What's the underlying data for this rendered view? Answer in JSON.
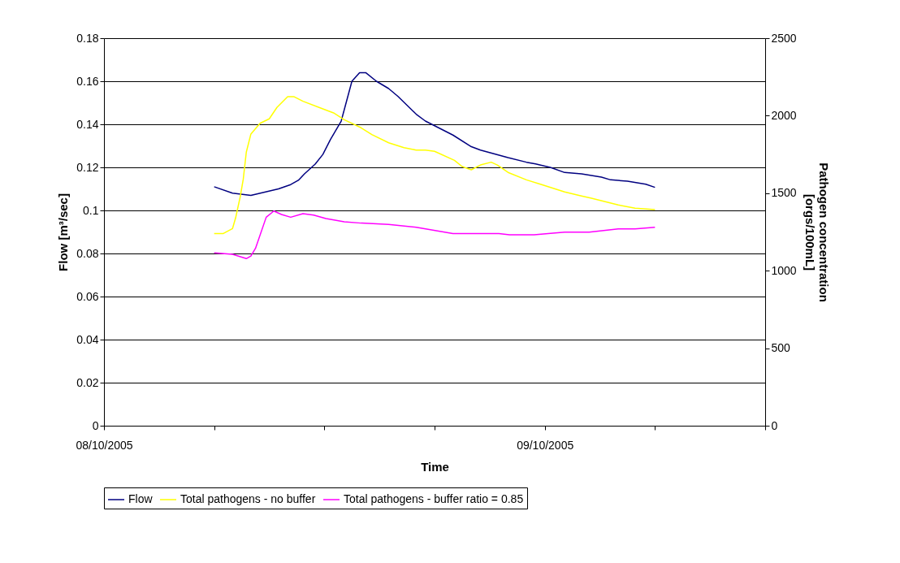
{
  "chart_data": {
    "type": "line",
    "xlabel": "Time",
    "ylabel": "Flow [m³/sec]",
    "y2label": "Pathogen concentration [orgs/100mL]",
    "xlim": [
      "2005-10-08T00:00",
      "2005-10-09T12:00"
    ],
    "xticks": [
      {
        "value": "2005-10-08T00:00",
        "label": "08/10/2005"
      },
      {
        "value": "2005-10-08T06:00",
        "label": null
      },
      {
        "value": "2005-10-08T12:00",
        "label": null
      },
      {
        "value": "2005-10-08T18:00",
        "label": null
      },
      {
        "value": "2005-10-09T00:00",
        "label": "09/10/2005"
      },
      {
        "value": "2005-10-09T06:00",
        "label": null
      },
      {
        "value": "2005-10-09T12:00",
        "label": null
      }
    ],
    "ylim": [
      0,
      0.18
    ],
    "yticks": [
      0,
      0.02,
      0.04,
      0.06,
      0.08,
      0.1,
      0.12,
      0.14,
      0.16,
      0.18
    ],
    "y2lim": [
      0,
      2500
    ],
    "y2ticks": [
      0,
      500,
      1000,
      1500,
      2000,
      2500
    ],
    "grid": "y",
    "legend": "bottom",
    "marker": "none",
    "line_style": "solid",
    "series": [
      {
        "name": "Flow",
        "color": "#000080",
        "x": [
          "2005-10-08T06:00",
          "2005-10-08T07:00",
          "2005-10-08T08:00",
          "2005-10-08T09:30",
          "2005-10-08T10:10",
          "2005-10-08T10:35",
          "2005-10-08T10:55",
          "2005-10-08T11:30",
          "2005-10-08T11:55",
          "2005-10-08T12:20",
          "2005-10-08T12:55",
          "2005-10-08T13:30",
          "2005-10-08T13:55",
          "2005-10-08T14:15",
          "2005-10-08T14:50",
          "2005-10-08T15:30",
          "2005-10-08T16:00",
          "2005-10-08T17:00",
          "2005-10-08T17:30",
          "2005-10-08T19:00",
          "2005-10-08T20:00",
          "2005-10-08T20:30",
          "2005-10-08T22:00",
          "2005-10-08T23:00",
          "2005-10-08T23:30",
          "2005-10-09T00:20",
          "2005-10-09T01:05",
          "2005-10-09T02:00",
          "2005-10-09T03:05",
          "2005-10-09T03:35",
          "2005-10-09T04:30",
          "2005-10-09T05:30",
          "2005-10-09T06:00"
        ],
        "values": [
          0.111,
          0.108,
          0.107,
          0.11,
          0.112,
          0.114,
          0.117,
          0.1215,
          0.126,
          0.133,
          0.1415,
          0.16,
          0.164,
          0.164,
          0.16,
          0.1566,
          0.153,
          0.1447,
          0.1415,
          0.135,
          0.1296,
          0.128,
          0.1245,
          0.1224,
          0.1216,
          0.1199,
          0.1176,
          0.117,
          0.1155,
          0.1142,
          0.1136,
          0.1122,
          0.1107
        ]
      },
      {
        "name": "Total pathogens - no buffer",
        "color": "#ffff00",
        "axis": "y2",
        "x": [
          "2005-10-08T06:00",
          "2005-10-08T06:30",
          "2005-10-08T07:00",
          "2005-10-08T07:10",
          "2005-10-08T07:25",
          "2005-10-08T07:35",
          "2005-10-08T07:45",
          "2005-10-08T08:00",
          "2005-10-08T08:30",
          "2005-10-08T09:00",
          "2005-10-08T09:25",
          "2005-10-08T10:00",
          "2005-10-08T10:20",
          "2005-10-08T10:50",
          "2005-10-08T11:55",
          "2005-10-08T12:30",
          "2005-10-08T13:05",
          "2005-10-08T14:00",
          "2005-10-08T14:35",
          "2005-10-08T15:30",
          "2005-10-08T16:20",
          "2005-10-08T17:00",
          "2005-10-08T17:30",
          "2005-10-08T18:00",
          "2005-10-08T19:05",
          "2005-10-08T19:30",
          "2005-10-08T20:00",
          "2005-10-08T20:30",
          "2005-10-08T21:05",
          "2005-10-08T21:25",
          "2005-10-08T22:00",
          "2005-10-08T23:00",
          "2005-10-08T23:50",
          "2005-10-09T01:05",
          "2005-10-09T02:00",
          "2005-10-09T02:30",
          "2005-10-09T04:00",
          "2005-10-09T04:55",
          "2005-10-09T06:00"
        ],
        "values": [
          1240,
          1240,
          1272,
          1340,
          1476,
          1590,
          1765,
          1882,
          1951,
          1980,
          2053,
          2123,
          2123,
          2093,
          2044,
          2018,
          1974,
          1922,
          1878,
          1825,
          1794,
          1778,
          1778,
          1770,
          1712,
          1672,
          1651,
          1682,
          1700,
          1682,
          1634,
          1586,
          1555,
          1508,
          1482,
          1469,
          1424,
          1403,
          1394
        ]
      },
      {
        "name": "Total pathogens - buffer ratio = 0.85",
        "color": "#ff00ff",
        "axis": "y2",
        "x": [
          "2005-10-08T06:00",
          "2005-10-08T07:00",
          "2005-10-08T07:45",
          "2005-10-08T08:00",
          "2005-10-08T08:15",
          "2005-10-08T08:50",
          "2005-10-08T09:15",
          "2005-10-08T09:40",
          "2005-10-08T10:10",
          "2005-10-08T10:50",
          "2005-10-08T11:25",
          "2005-10-08T12:05",
          "2005-10-08T13:05",
          "2005-10-08T14:00",
          "2005-10-08T15:30",
          "2005-10-08T17:00",
          "2005-10-08T19:00",
          "2005-10-08T21:30",
          "2005-10-08T22:05",
          "2005-10-08T23:25",
          "2005-10-09T01:05",
          "2005-10-09T02:25",
          "2005-10-09T04:00",
          "2005-10-09T04:55",
          "2005-10-09T06:00"
        ],
        "values": [
          1115,
          1106,
          1078,
          1095,
          1144,
          1345,
          1385,
          1363,
          1345,
          1368,
          1359,
          1336,
          1315,
          1307,
          1298,
          1280,
          1240,
          1240,
          1232,
          1232,
          1249,
          1249,
          1270,
          1270,
          1280
        ]
      }
    ]
  }
}
